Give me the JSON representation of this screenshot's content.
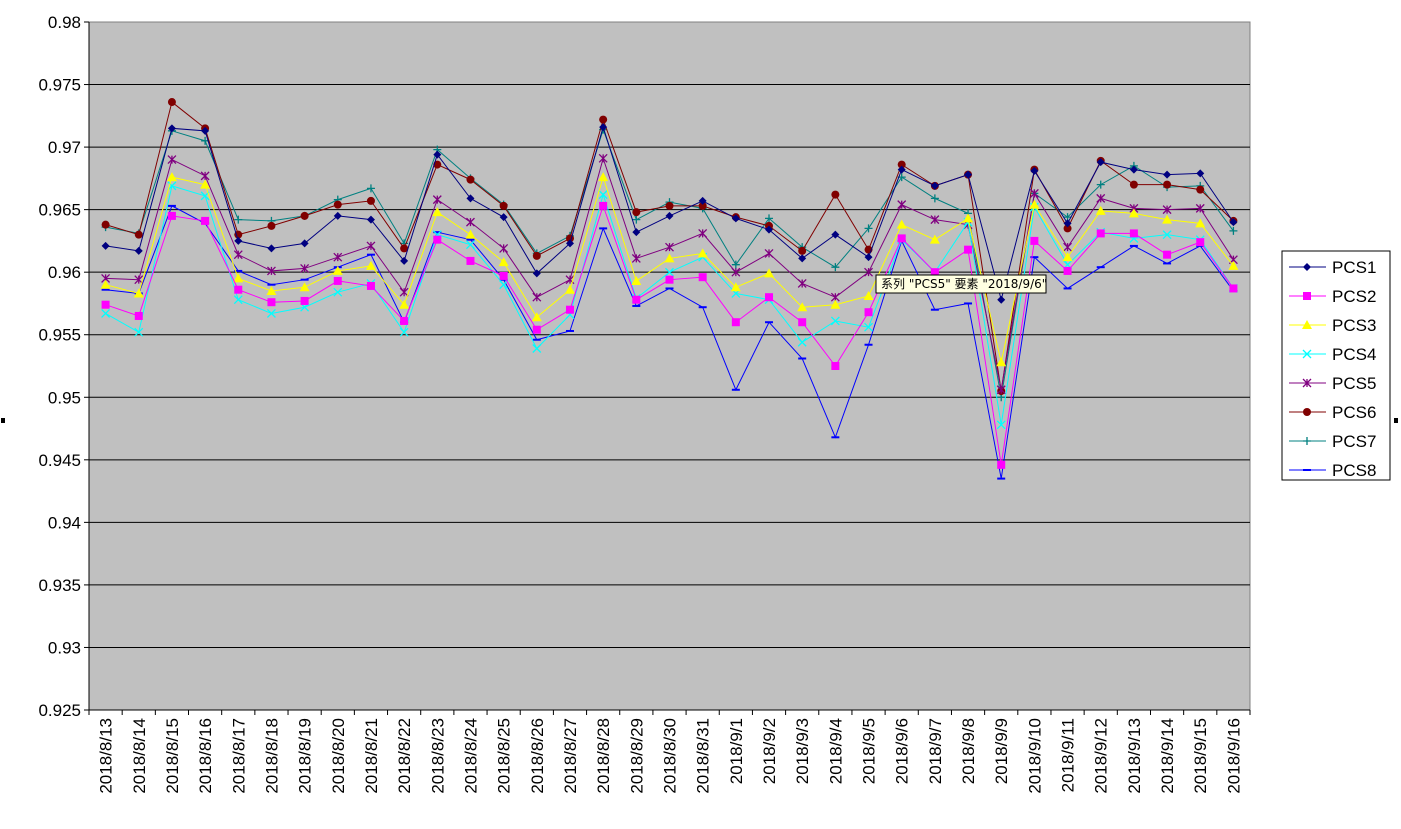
{
  "chart_data": {
    "type": "line",
    "title": "",
    "xlabel": "",
    "ylabel": "",
    "ylim": [
      0.925,
      0.98
    ],
    "y_ticks": [
      "0.925",
      "0.93",
      "0.935",
      "0.94",
      "0.945",
      "0.95",
      "0.955",
      "0.96",
      "0.965",
      "0.97",
      "0.975",
      "0.98"
    ],
    "grid": true,
    "plot_background": "#c0c0c0",
    "legend_position": "right",
    "categories": [
      "2018/8/13",
      "2018/8/14",
      "2018/8/15",
      "2018/8/16",
      "2018/8/17",
      "2018/8/18",
      "2018/8/19",
      "2018/8/20",
      "2018/8/21",
      "2018/8/22",
      "2018/8/23",
      "2018/8/24",
      "2018/8/25",
      "2018/8/26",
      "2018/8/27",
      "2018/8/28",
      "2018/8/29",
      "2018/8/30",
      "2018/8/31",
      "2018/9/1",
      "2018/9/2",
      "2018/9/3",
      "2018/9/4",
      "2018/9/5",
      "2018/9/6",
      "2018/9/7",
      "2018/9/8",
      "2018/9/9",
      "2018/9/10",
      "2018/9/11",
      "2018/9/12",
      "2018/9/13",
      "2018/9/14",
      "2018/9/15",
      "2018/9/16"
    ],
    "series": [
      {
        "name": "PCS1",
        "color": "#000080",
        "marker": "diamond",
        "values": [
          0.9621,
          0.9617,
          0.9715,
          0.9713,
          0.9625,
          0.9619,
          0.9623,
          0.9645,
          0.9642,
          0.9609,
          0.9694,
          0.9659,
          0.9644,
          0.9599,
          0.9623,
          0.9716,
          0.9632,
          0.9645,
          0.9657,
          0.9643,
          0.9634,
          0.9611,
          0.963,
          0.9612,
          0.9682,
          0.9669,
          0.9678,
          0.9578,
          0.9681,
          0.9639,
          0.9688,
          0.9682,
          0.9678,
          0.9679,
          0.964
        ]
      },
      {
        "name": "PCS2",
        "color": "#ff00ff",
        "marker": "square",
        "values": [
          0.9574,
          0.9565,
          0.9645,
          0.9641,
          0.9586,
          0.9576,
          0.9577,
          0.9593,
          0.9589,
          0.9561,
          0.9626,
          0.9609,
          0.9597,
          0.9554,
          0.957,
          0.9653,
          0.9578,
          0.9594,
          0.9596,
          0.956,
          0.958,
          0.956,
          0.9525,
          0.9568,
          0.9627,
          0.96,
          0.9618,
          0.9446,
          0.9625,
          0.9601,
          0.9631,
          0.9631,
          0.9614,
          0.9624,
          0.9587
        ]
      },
      {
        "name": "PCS3",
        "color": "#ffff00",
        "marker": "triangle",
        "values": [
          0.959,
          0.9583,
          0.9676,
          0.967,
          0.9595,
          0.9585,
          0.9588,
          0.9601,
          0.9605,
          0.9574,
          0.9648,
          0.963,
          0.9608,
          0.9564,
          0.9586,
          0.9676,
          0.9593,
          0.9611,
          0.9615,
          0.9588,
          0.9599,
          0.9572,
          0.9574,
          0.9581,
          0.9638,
          0.9626,
          0.9643,
          0.9528,
          0.9654,
          0.9612,
          0.9649,
          0.9647,
          0.9642,
          0.9639,
          0.9605
        ]
      },
      {
        "name": "PCS4",
        "color": "#00ffff",
        "marker": "x",
        "values": [
          0.9567,
          0.9552,
          0.9669,
          0.9661,
          0.9578,
          0.9567,
          0.9572,
          0.9584,
          0.9591,
          0.9552,
          0.963,
          0.9622,
          0.959,
          0.9539,
          0.9566,
          0.9662,
          0.9579,
          0.96,
          0.9612,
          0.9583,
          0.9578,
          0.9544,
          0.9561,
          0.9556,
          0.9626,
          0.96,
          0.964,
          0.9478,
          0.9652,
          0.9606,
          0.9632,
          0.9627,
          0.963,
          0.9626,
          0.9587
        ]
      },
      {
        "name": "PCS5",
        "color": "#800080",
        "marker": "star",
        "values": [
          0.9595,
          0.9594,
          0.969,
          0.9677,
          0.9614,
          0.9601,
          0.9603,
          0.9612,
          0.9621,
          0.9584,
          0.9658,
          0.964,
          0.9619,
          0.958,
          0.9594,
          0.9691,
          0.9611,
          0.962,
          0.9631,
          0.96,
          0.9615,
          0.9591,
          0.958,
          0.96,
          0.9654,
          0.9642,
          0.9638,
          0.9506,
          0.9663,
          0.962,
          0.9659,
          0.9651,
          0.965,
          0.9651,
          0.961
        ]
      },
      {
        "name": "PCS6",
        "color": "#800000",
        "marker": "circle",
        "values": [
          0.9638,
          0.963,
          0.9736,
          0.9715,
          0.963,
          0.9637,
          0.9645,
          0.9654,
          0.9657,
          0.9619,
          0.9686,
          0.9674,
          0.9653,
          0.9613,
          0.9627,
          0.9722,
          0.9648,
          0.9653,
          0.9653,
          0.9644,
          0.9637,
          0.9617,
          0.9662,
          0.9618,
          0.9686,
          0.9669,
          0.9678,
          0.9505,
          0.9682,
          0.9635,
          0.9689,
          0.967,
          0.967,
          0.9666,
          0.9641
        ]
      },
      {
        "name": "PCS7",
        "color": "#008080",
        "marker": "plus",
        "values": [
          0.9636,
          0.9631,
          0.9713,
          0.9705,
          0.9642,
          0.9641,
          0.9645,
          0.9658,
          0.9667,
          0.9623,
          0.9698,
          0.9675,
          0.9654,
          0.9615,
          0.9629,
          0.9714,
          0.9642,
          0.9656,
          0.9651,
          0.9606,
          0.9643,
          0.962,
          0.9604,
          0.9635,
          0.9676,
          0.9659,
          0.9647,
          0.95,
          0.9663,
          0.9644,
          0.967,
          0.9685,
          0.9668,
          0.9669,
          0.9633
        ]
      },
      {
        "name": "PCS8",
        "color": "#0000ff",
        "marker": "dash",
        "values": [
          0.9586,
          0.9583,
          0.9653,
          0.9639,
          0.9601,
          0.959,
          0.9594,
          0.9604,
          0.9614,
          0.956,
          0.9632,
          0.9626,
          0.9594,
          0.9546,
          0.9553,
          0.9635,
          0.9573,
          0.9587,
          0.9572,
          0.9506,
          0.956,
          0.9531,
          0.9468,
          0.9542,
          0.9625,
          0.957,
          0.9575,
          0.9435,
          0.9612,
          0.9587,
          0.9604,
          0.9621,
          0.9607,
          0.9621,
          0.9585
        ]
      }
    ]
  },
  "tooltip": {
    "text": "系列 \"PCS5\" 要素 \"2018/9/6\"",
    "series_index": 4,
    "category_index": 24
  }
}
